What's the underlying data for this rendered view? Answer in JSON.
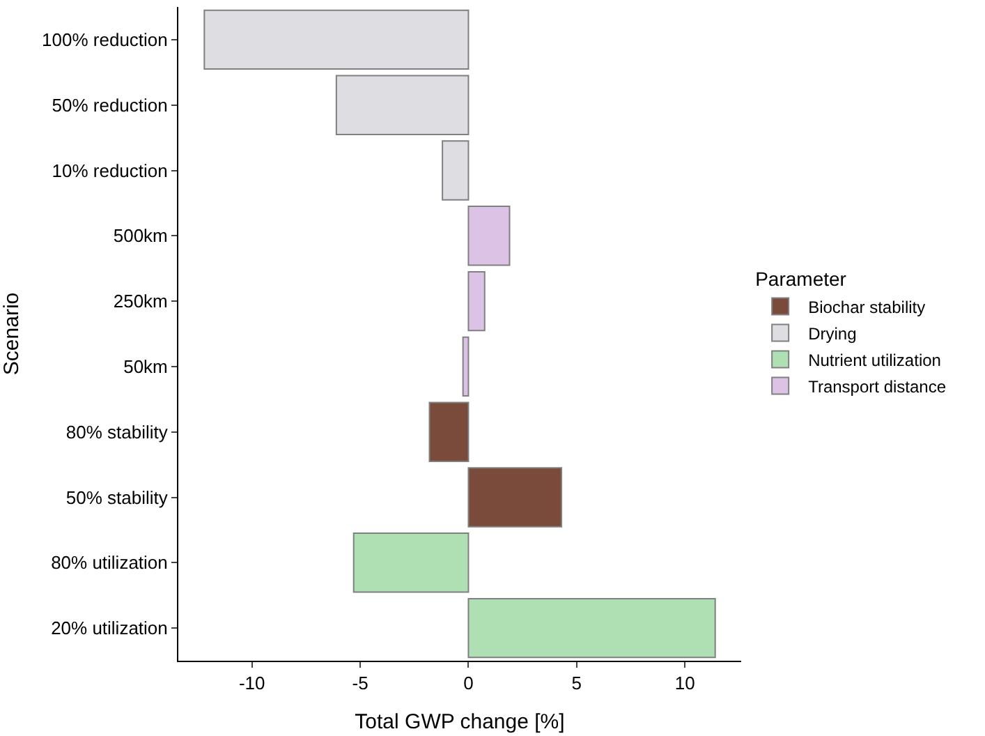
{
  "chart_data": {
    "type": "bar",
    "orientation": "horizontal",
    "stacked": true,
    "xlabel": "Total GWP change [%]",
    "ylabel": "Scenario",
    "legend_title": "Parameter",
    "legend": "right",
    "categories": [
      "100% reduction",
      "50% reduction",
      "10% reduction",
      "500km",
      "250km",
      "50km",
      "80% stability",
      "50% stability",
      "80% utilization",
      "20% utilization"
    ],
    "xlim": [
      -13.4,
      12.6
    ],
    "xticks": [
      -10,
      -5,
      0,
      5,
      10
    ],
    "series": [
      {
        "name": "Biochar stability",
        "color": "#7a4b3b",
        "values": [
          null,
          null,
          null,
          null,
          null,
          null,
          -1.8,
          4.3,
          null,
          null
        ]
      },
      {
        "name": "Drying",
        "color": "#dddde2",
        "values": [
          -12.2,
          -6.1,
          -1.2,
          null,
          null,
          null,
          null,
          null,
          null,
          null
        ]
      },
      {
        "name": "Nutrient utilization",
        "color": "#aee0b4",
        "values": [
          null,
          null,
          null,
          null,
          null,
          null,
          null,
          null,
          -5.3,
          11.4
        ]
      },
      {
        "name": "Transport distance",
        "color": "#dcc3e6",
        "values": [
          null,
          null,
          null,
          1.9,
          0.75,
          -0.25,
          null,
          null,
          null,
          null
        ]
      }
    ]
  }
}
